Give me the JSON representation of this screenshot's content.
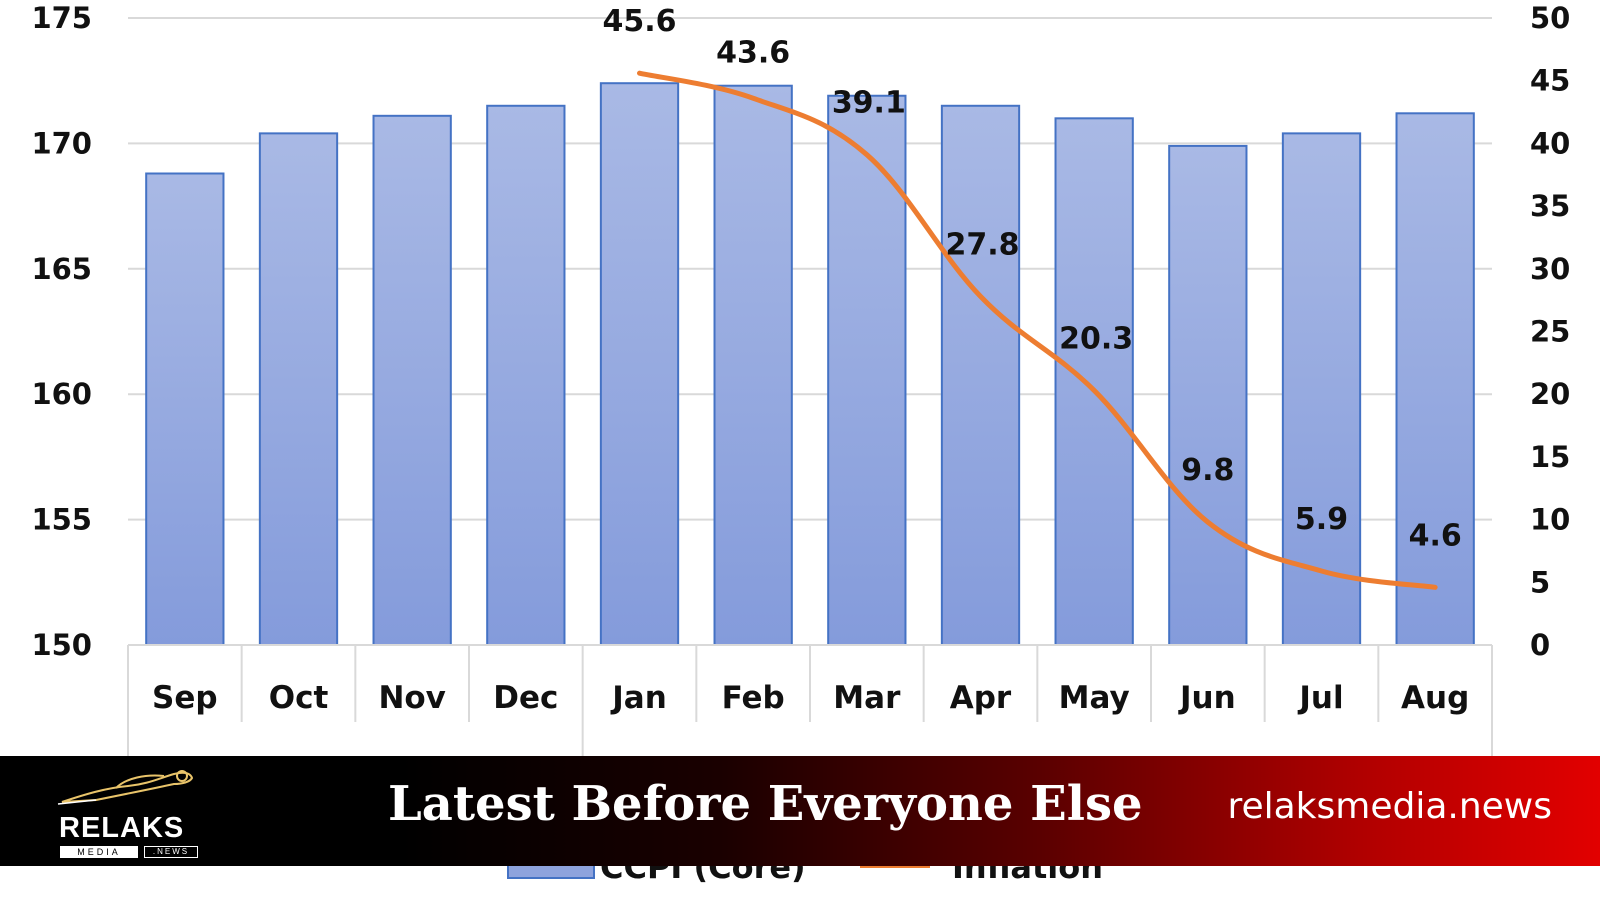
{
  "chart_data": {
    "type": "bar",
    "categories": [
      "Sep",
      "Oct",
      "Nov",
      "Dec",
      "Jan",
      "Feb",
      "Mar",
      "Apr",
      "May",
      "Jun",
      "Jul",
      "Aug"
    ],
    "series": [
      {
        "name": "CCPI (Core)",
        "type": "bar",
        "axis": "left",
        "color": "#8ea3dd",
        "values": [
          168.8,
          170.4,
          171.1,
          171.5,
          172.4,
          172.3,
          171.9,
          171.5,
          171.0,
          169.9,
          170.4,
          171.2
        ]
      },
      {
        "name": "Inflation",
        "type": "line",
        "axis": "right",
        "color": "#ed7d31",
        "values": [
          null,
          null,
          null,
          null,
          45.6,
          43.6,
          39.1,
          27.8,
          20.3,
          9.8,
          5.9,
          4.6
        ],
        "labels": [
          "",
          "",
          "",
          "",
          "45.6",
          "43.6",
          "39.1",
          "27.8",
          "20.3",
          "9.8",
          "5.9",
          "4.6"
        ]
      }
    ],
    "ylim": [
      150,
      175
    ],
    "yticks": [
      150,
      155,
      160,
      165,
      170,
      175
    ],
    "y2lim": [
      0,
      50
    ],
    "y2ticks": [
      0,
      5,
      10,
      15,
      20,
      25,
      30,
      35,
      40,
      45,
      50
    ],
    "grid": true,
    "legend_position": "bottom",
    "legend": [
      "CCPI (Core)",
      "Inflation"
    ]
  },
  "banner": {
    "logo_name": "RELAKS",
    "logo_sub_left": "MEDIA",
    "logo_sub_right": ".NEWS",
    "tagline": "Latest Before Everyone Else",
    "site": "relaksmedia.news",
    "logo_icon": "car-sketch-icon"
  }
}
